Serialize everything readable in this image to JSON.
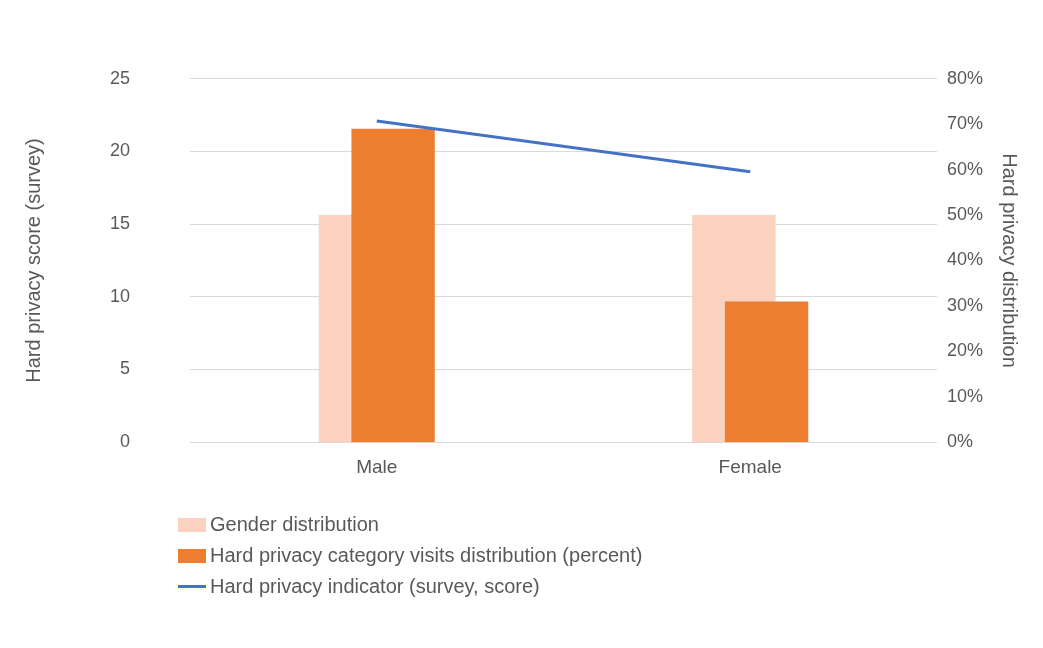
{
  "chart_data": {
    "type": "bar",
    "categories": [
      "Male",
      "Female"
    ],
    "ylabel": "Hard privacy score (survey)",
    "y2label": "Hard privacy distribution",
    "ylim": [
      0,
      25
    ],
    "yticks": [
      0,
      5,
      10,
      15,
      20,
      25
    ],
    "y2lim": [
      0,
      80
    ],
    "y2ticks": [
      {
        "value": 0,
        "label": "0%"
      },
      {
        "value": 10,
        "label": "10%"
      },
      {
        "value": 20,
        "label": "20%"
      },
      {
        "value": 30,
        "label": "30%"
      },
      {
        "value": 40,
        "label": "40%"
      },
      {
        "value": 50,
        "label": "50%"
      },
      {
        "value": 60,
        "label": "60%"
      },
      {
        "value": 70,
        "label": "70%"
      },
      {
        "value": 80,
        "label": "80%"
      }
    ],
    "grid": "y",
    "legend": "bottom left",
    "marker": "none",
    "series": [
      {
        "name": "Gender distribution",
        "axis": "y2",
        "color": "#fbd1c0",
        "values": [
          50,
          50
        ]
      },
      {
        "name": "Hard privacy category visits distribution (percent)",
        "axis": "y2",
        "color": "#ed7d31",
        "values": [
          69,
          31
        ]
      },
      {
        "name": "Hard privacy indicator (survey, score)",
        "type": "line",
        "axis": "y",
        "color": "#4472c4",
        "values": [
          22.1,
          18.6
        ]
      }
    ]
  }
}
